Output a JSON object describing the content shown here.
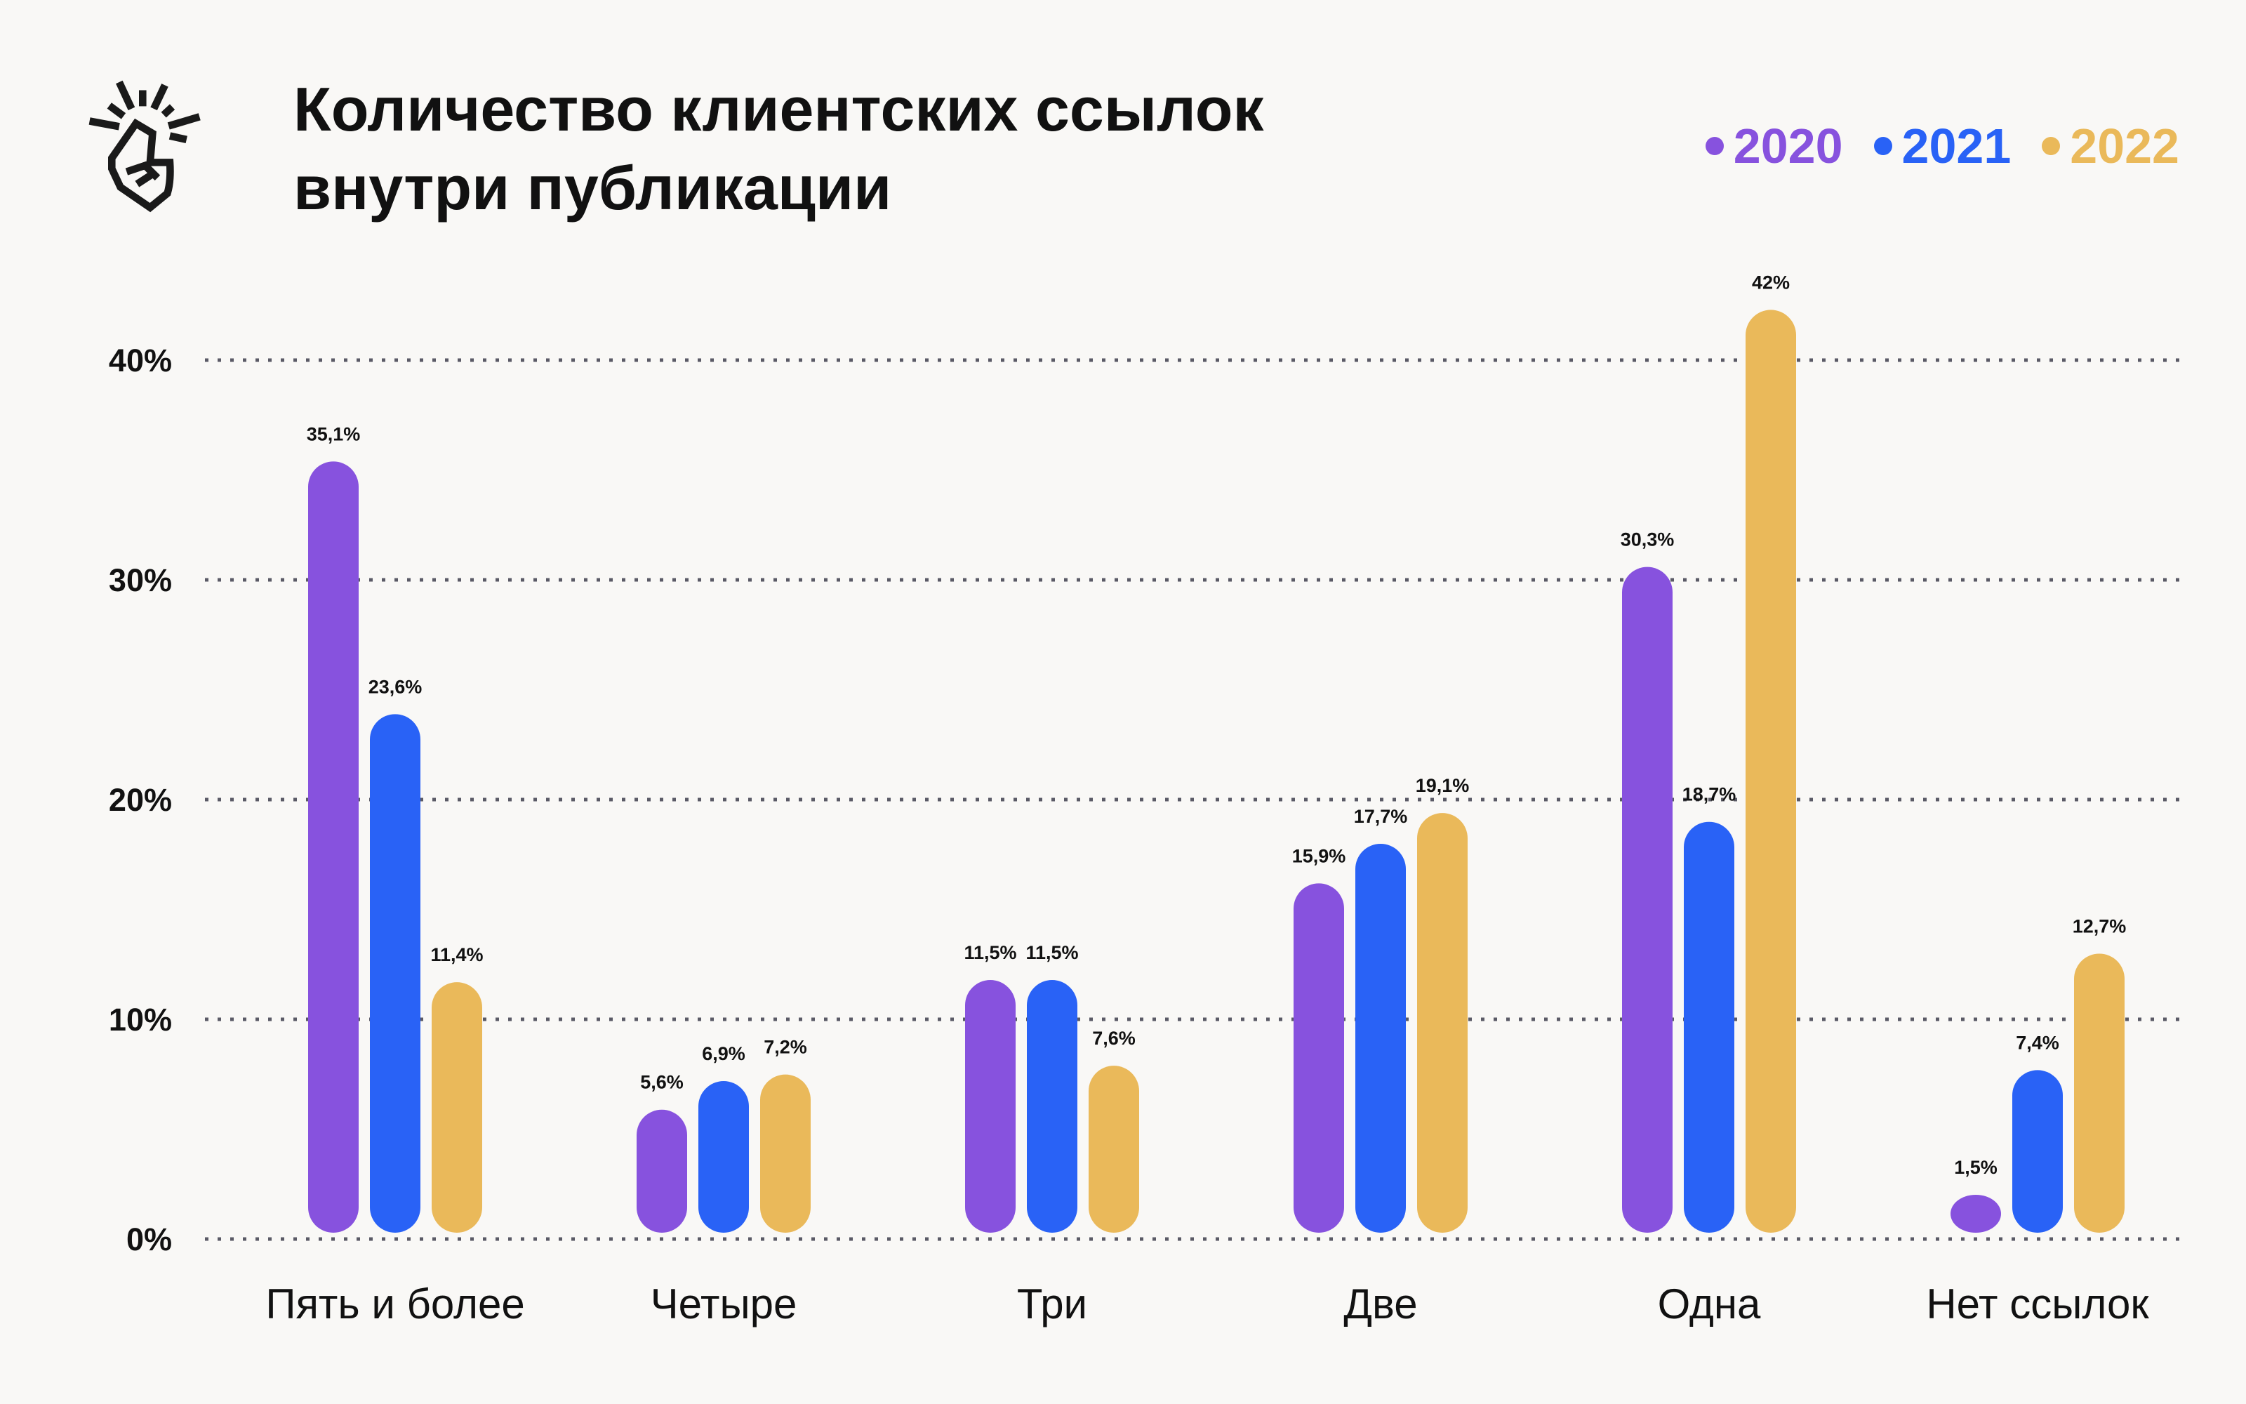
{
  "title_lines": [
    "Количество клиентских ссылок",
    "внутри публикации"
  ],
  "logo_icon": "finger-snap-icon",
  "chart_data": {
    "type": "bar",
    "title": "Количество клиентских ссылок внутри публикации",
    "categories": [
      "Пять и более",
      "Четыре",
      "Три",
      "Две",
      "Одна",
      "Нет ссылок"
    ],
    "series": [
      {
        "name": "2020",
        "color": "#8752de",
        "values": [
          35.1,
          5.6,
          11.5,
          15.9,
          30.3,
          1.5
        ],
        "labels": [
          "35,1%",
          "5,6%",
          "11,5%",
          "15,9%",
          "30,3%",
          "1,5%"
        ]
      },
      {
        "name": "2021",
        "color": "#2962f6",
        "values": [
          23.6,
          6.9,
          11.5,
          17.7,
          18.7,
          7.4
        ],
        "labels": [
          "23,6%",
          "6,9%",
          "11,5%",
          "17,7%",
          "18,7%",
          "7,4%"
        ]
      },
      {
        "name": "2022",
        "color": "#eab95a",
        "values": [
          11.4,
          7.2,
          7.6,
          19.1,
          42,
          12.7
        ],
        "labels": [
          "11,4%",
          "7,2%",
          "7,6%",
          "19,1%",
          "42%",
          "12,7%"
        ]
      }
    ],
    "yticks": [
      0,
      10,
      20,
      30,
      40
    ],
    "ytick_labels": [
      "0%",
      "10%",
      "20%",
      "30%",
      "40%"
    ],
    "ylim": [
      0,
      42
    ],
    "grid": true,
    "legend_position": "top-right",
    "xlabel": "",
    "ylabel": ""
  }
}
